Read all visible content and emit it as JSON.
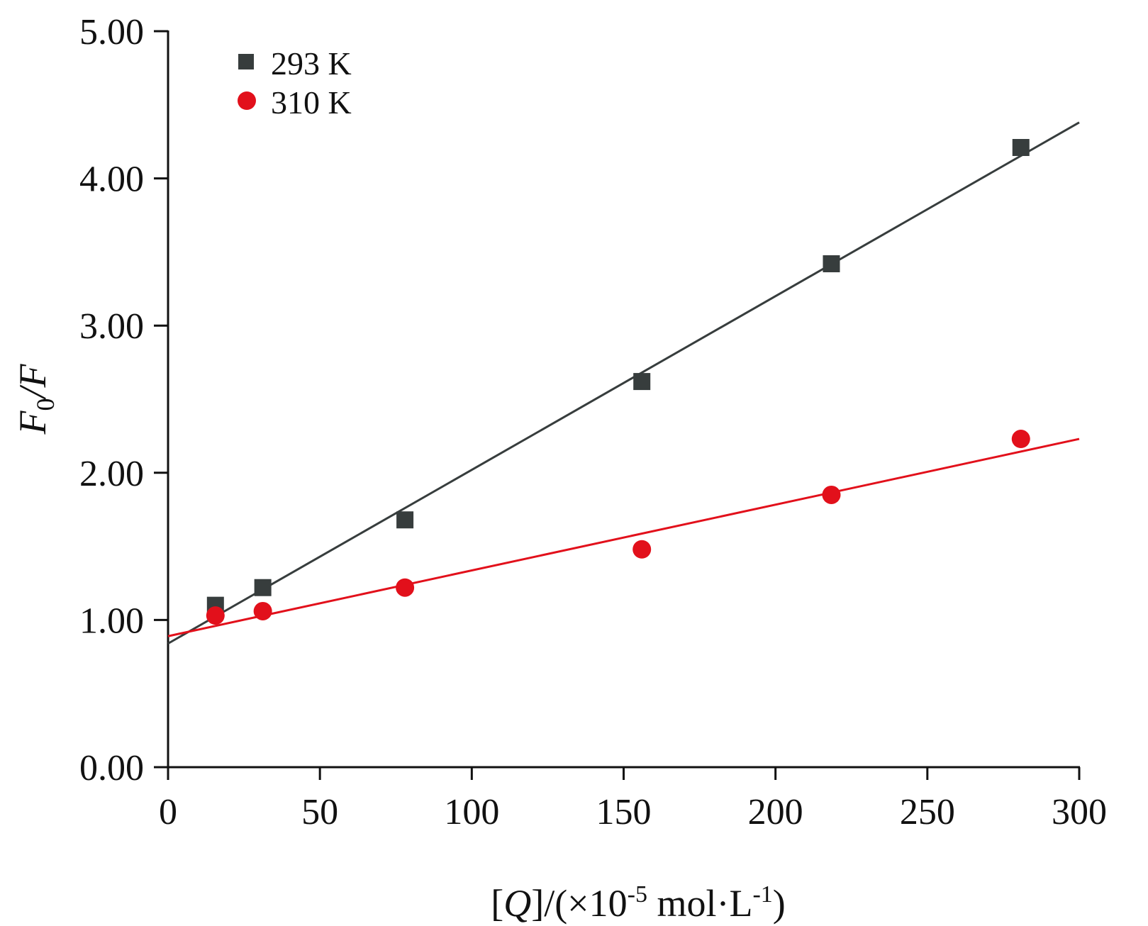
{
  "chart_data": {
    "type": "scatter",
    "xlabel": {
      "open": "[",
      "var": "Q",
      "mid": "]/(×10",
      "exp": "-5",
      "mid2": " mol·L",
      "exp2": "-1",
      "close": ")"
    },
    "ylabel": {
      "var": "F",
      "sub": "0",
      "rest": "/F"
    },
    "xlim": [
      0,
      300
    ],
    "ylim": [
      0,
      5
    ],
    "x_ticks": [
      0,
      50,
      100,
      150,
      200,
      250,
      300
    ],
    "x_tick_labels": [
      "0",
      "50",
      "100",
      "150",
      "200",
      "250",
      "300"
    ],
    "y_ticks": [
      0,
      1,
      2,
      3,
      4,
      5
    ],
    "y_tick_labels": [
      "0.00",
      "1.00",
      "2.00",
      "3.00",
      "4.00",
      "5.00"
    ],
    "grid": false,
    "legend_position": "top-left",
    "series": [
      {
        "name": "293 K",
        "marker": "square",
        "color": "#373d3d",
        "x": [
          15.6,
          31.2,
          78.0,
          156.0,
          218.4,
          280.8
        ],
        "y": [
          1.1,
          1.22,
          1.68,
          2.62,
          3.42,
          4.21
        ],
        "fit": {
          "x0": 0,
          "y0": 0.84,
          "x1": 300,
          "y1": 4.38
        }
      },
      {
        "name": "310 K",
        "marker": "circle",
        "color": "#e2101b",
        "x": [
          15.6,
          31.2,
          78.0,
          156.0,
          218.4,
          280.8
        ],
        "y": [
          1.03,
          1.06,
          1.22,
          1.48,
          1.85,
          2.23
        ],
        "fit": {
          "x0": 0,
          "y0": 0.89,
          "x1": 300,
          "y1": 2.23
        }
      }
    ]
  }
}
